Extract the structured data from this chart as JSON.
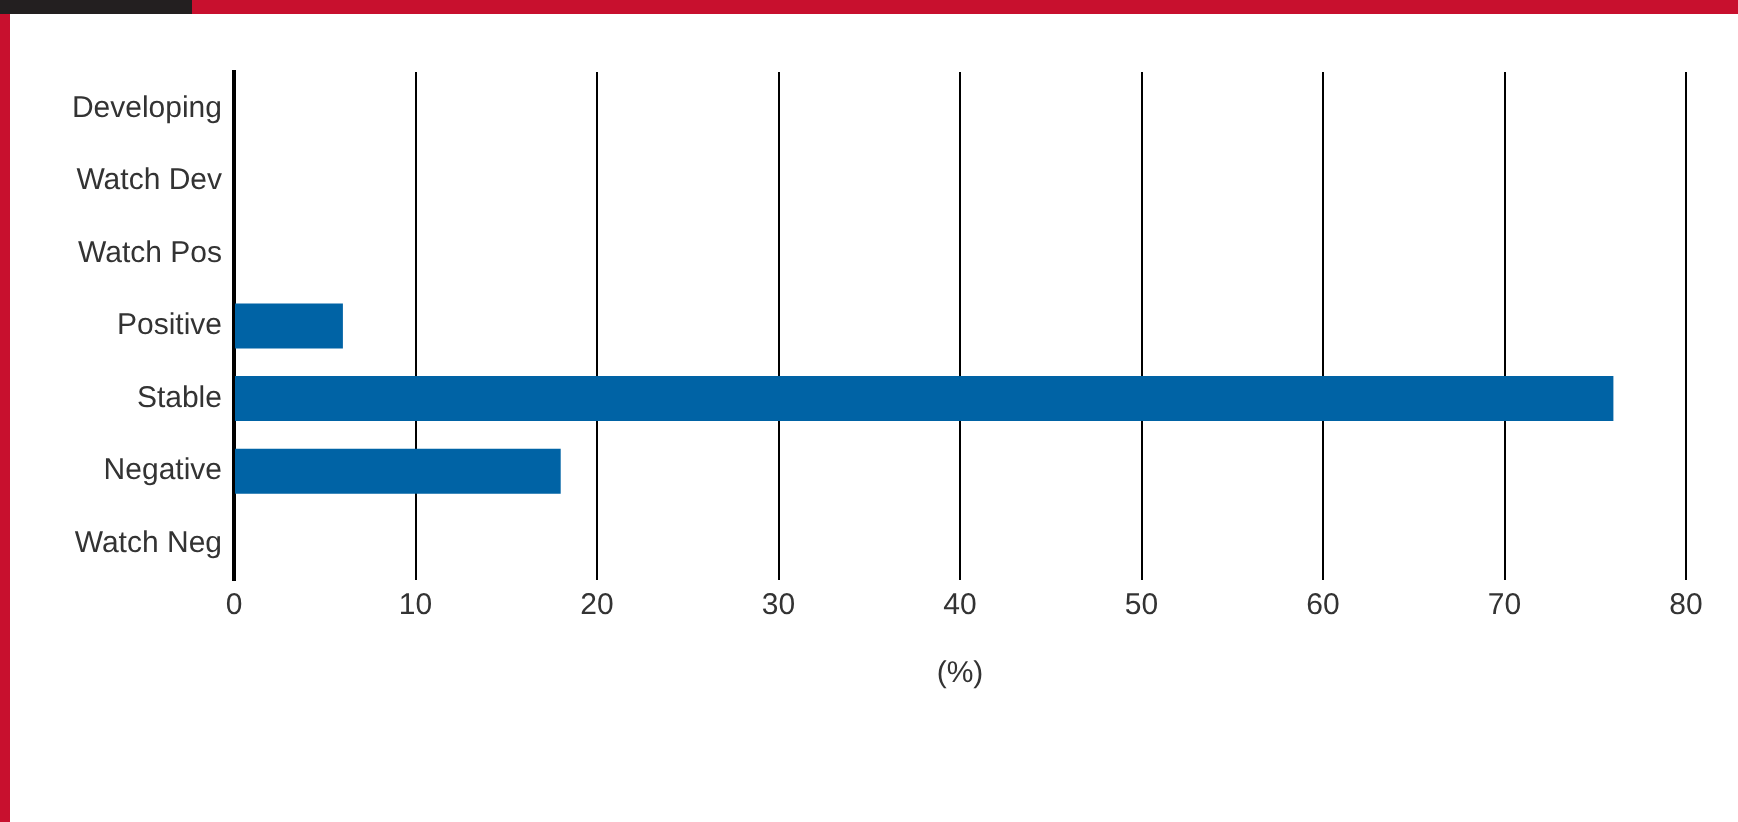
{
  "chart_data": {
    "type": "bar",
    "orientation": "horizontal",
    "categories": [
      "Developing",
      "Watch Dev",
      "Watch Pos",
      "Positive",
      "Stable",
      "Negative",
      "Watch Neg"
    ],
    "values": [
      0,
      0,
      0,
      6,
      76,
      18,
      0
    ],
    "color": "#0063a5",
    "xlabel": "(%)",
    "xlim": [
      0,
      80
    ],
    "xticks": [
      0,
      10,
      20,
      30,
      40,
      50,
      60,
      70,
      80
    ],
    "grid": "x",
    "legend": false
  }
}
